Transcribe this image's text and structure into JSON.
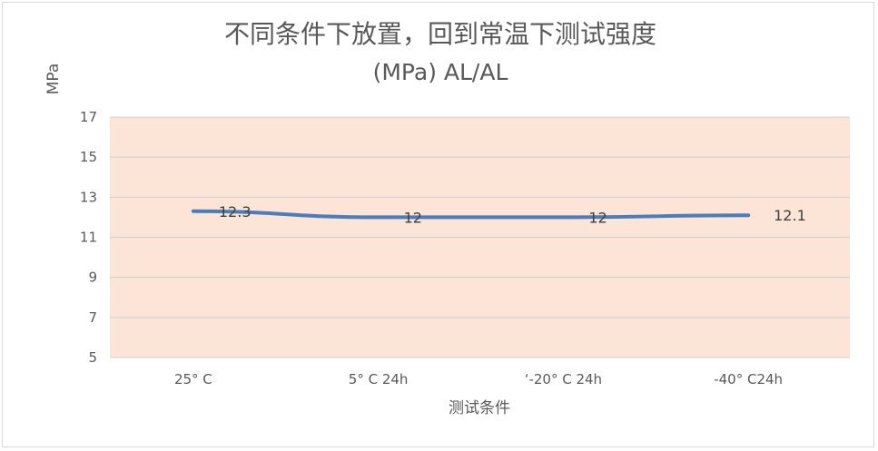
{
  "chart_data": {
    "type": "line",
    "title": "不同条件下放置，回到常温下测试强度",
    "subtitle": "(MPa)  AL/AL",
    "xlabel": "测试条件",
    "ylabel": "MPa",
    "categories": [
      "25° C",
      "5° C 24h",
      "‘-20° C 24h",
      "-40° C24h"
    ],
    "series": [
      {
        "values": [
          12.3,
          12,
          12,
          12.1
        ]
      }
    ],
    "data_labels": [
      "12.3",
      "12",
      "12",
      "12.1"
    ],
    "ylim": [
      5,
      17
    ],
    "yticks": [
      5,
      7,
      9,
      11,
      13,
      15,
      17
    ],
    "ytick_labels": [
      "5",
      "7",
      "9",
      "11",
      "13",
      "15",
      "17"
    ],
    "grid": true,
    "legend": "none",
    "colors": {
      "plot_background": "#fce4d6",
      "line": "#4a7ebb",
      "gridline": "#d0d0d0",
      "text": "#595959"
    }
  }
}
